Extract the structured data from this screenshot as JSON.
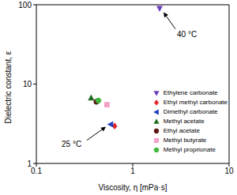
{
  "chart_data": {
    "type": "scatter",
    "x_label": "Viscosity, η [mPa·s]",
    "y_label": "Dielectric constant, ε",
    "log": true,
    "grid": false,
    "legend": "lower right",
    "xlim": [
      0.1,
      10
    ],
    "xticks": [
      0.1,
      1,
      10
    ],
    "ylim": [
      1,
      100
    ],
    "yticks": [
      1,
      10,
      100
    ],
    "series": [
      {
        "name": "Ethylene carbonate",
        "color": "#6a3fbf",
        "marker": "triangle-down",
        "x": [
          1.9
        ],
        "values": [
          90
        ]
      },
      {
        "name": "Ethyl methyl carbonate",
        "color": "#e0262b",
        "marker": "diamond",
        "x": [
          0.65
        ],
        "values": [
          2.96
        ]
      },
      {
        "name": "Dimethyl carbonate",
        "color": "#1f3fbf",
        "marker": "triangle-left",
        "x": [
          0.59
        ],
        "values": [
          3.1
        ]
      },
      {
        "name": "Methyl acetate",
        "color": "#1e6b1e",
        "marker": "triangle-up",
        "x": [
          0.37
        ],
        "values": [
          6.7
        ]
      },
      {
        "name": "Ethyl acetate",
        "color": "#5a1a12",
        "marker": "circle",
        "x": [
          0.42
        ],
        "values": [
          6.0
        ]
      },
      {
        "name": "Methyl butyrate",
        "color": "#f4a0c8",
        "marker": "square",
        "x": [
          0.54
        ],
        "values": [
          5.5
        ]
      },
      {
        "name": "Methyl proprionate",
        "color": "#3cb83c",
        "marker": "hexagon",
        "x": [
          0.44
        ],
        "values": [
          6.2
        ]
      }
    ],
    "annotations": [
      {
        "text": "40 °C",
        "target": "Ethylene carbonate"
      },
      {
        "text": "25 °C",
        "target": "Dimethyl carbonate"
      }
    ]
  }
}
